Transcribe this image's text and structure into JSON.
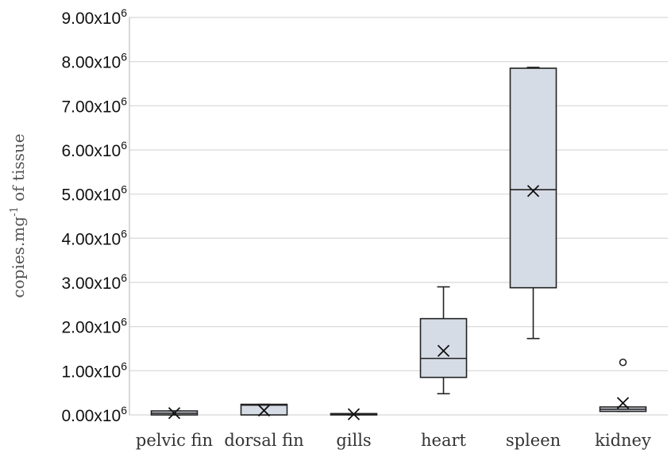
{
  "chart_data": {
    "type": "box",
    "ylabel": "copies.mg",
    "ylabel_sup": "-1",
    "ylabel_tail": " of tissue",
    "ylim": [
      0,
      9000000
    ],
    "y_ticks": [
      {
        "value": 0,
        "mantissa": "0.00x10",
        "exp": "6"
      },
      {
        "value": 1000000,
        "mantissa": "1.00x10",
        "exp": "6"
      },
      {
        "value": 2000000,
        "mantissa": "2.00x10",
        "exp": "6"
      },
      {
        "value": 3000000,
        "mantissa": "3.00x10",
        "exp": "6"
      },
      {
        "value": 4000000,
        "mantissa": "4.00x10",
        "exp": "6"
      },
      {
        "value": 5000000,
        "mantissa": "5.00x10",
        "exp": "6"
      },
      {
        "value": 6000000,
        "mantissa": "6.00x10",
        "exp": "6"
      },
      {
        "value": 7000000,
        "mantissa": "7.00x10",
        "exp": "6"
      },
      {
        "value": 8000000,
        "mantissa": "8.00x10",
        "exp": "6"
      },
      {
        "value": 9000000,
        "mantissa": "9.00x10",
        "exp": "6"
      }
    ],
    "grid": true,
    "categories": [
      "pelvic fin",
      "dorsal fin",
      "gills",
      "heart",
      "spleen",
      "kidney"
    ],
    "boxes": [
      {
        "min": 0,
        "q1": 0,
        "median": 40000,
        "q3": 90000,
        "max": 90000,
        "mean": 40000,
        "outliers": []
      },
      {
        "min": 0,
        "q1": 0,
        "median": 220000,
        "q3": 240000,
        "max": 240000,
        "mean": 100000,
        "outliers": []
      },
      {
        "min": 0,
        "q1": 0,
        "median": 20000,
        "q3": 30000,
        "max": 30000,
        "mean": 15000,
        "outliers": []
      },
      {
        "min": 480000,
        "q1": 850000,
        "median": 1280000,
        "q3": 2180000,
        "max": 2900000,
        "mean": 1450000,
        "outliers": []
      },
      {
        "min": 1730000,
        "q1": 2880000,
        "median": 5100000,
        "q3": 7850000,
        "max": 7870000,
        "mean": 5070000,
        "outliers": []
      },
      {
        "min": 80000,
        "q1": 80000,
        "median": 130000,
        "q3": 180000,
        "max": 180000,
        "mean": 270000,
        "outliers": [
          1190000
        ]
      }
    ]
  }
}
